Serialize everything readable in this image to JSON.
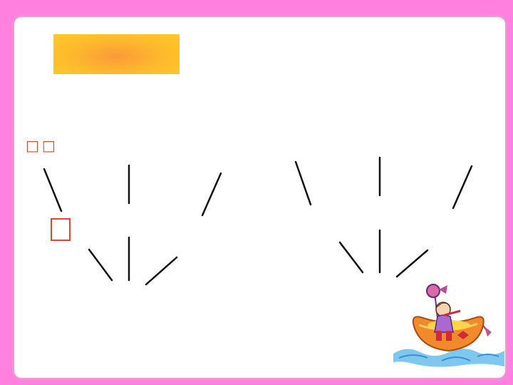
{
  "slide": {
    "background_color": "#ff80df",
    "card_color": "#ffffff",
    "title_box_colors": [
      "#fc9a3a",
      "#ffc928"
    ],
    "accent_color": "#e8442a",
    "label_glyphs": "□□",
    "box_glyph": ""
  },
  "illustration": {
    "icon": "girl-in-boat-clipart-icon"
  }
}
